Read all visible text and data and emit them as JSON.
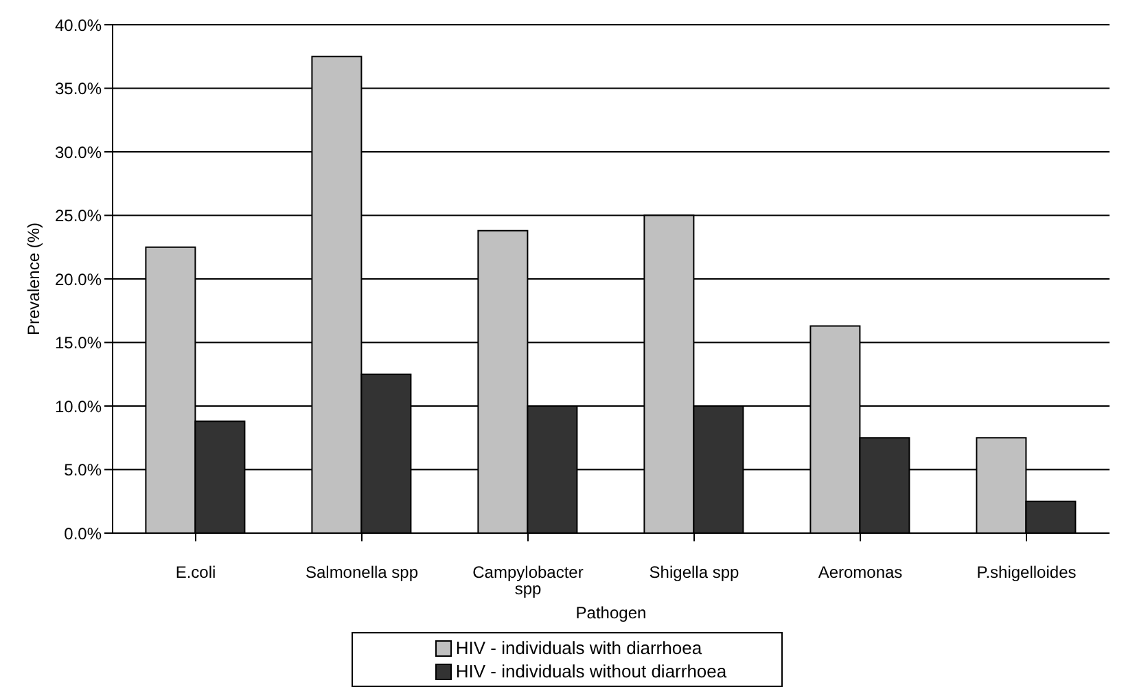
{
  "chart_data": {
    "type": "bar",
    "xlabel": "Pathogen",
    "ylabel": "Prevalence (%)",
    "categories": [
      "E.coli",
      "Salmonella spp",
      "Campylobacter spp",
      "Shigella spp",
      "Aeromonas",
      "P.shigelloides"
    ],
    "series": [
      {
        "name": "HIV - individuals with diarrhoea",
        "color": "#c0c0c0",
        "values": [
          22.5,
          37.5,
          23.8,
          25,
          16.3,
          7.5
        ]
      },
      {
        "name": "HIV - individuals without diarrhoea",
        "color": "#333333",
        "values": [
          8.8,
          12.5,
          10,
          10,
          7.5,
          2.5
        ]
      }
    ],
    "ylim": [
      0,
      40
    ],
    "yticks": [
      {
        "value": 0,
        "label": "0.0%"
      },
      {
        "value": 5,
        "label": "5.0%"
      },
      {
        "value": 10,
        "label": "10.0%"
      },
      {
        "value": 15,
        "label": "15.0%"
      },
      {
        "value": 20,
        "label": "20.0%"
      },
      {
        "value": 25,
        "label": "25.0%"
      },
      {
        "value": 30,
        "label": "30.0%"
      },
      {
        "value": 35,
        "label": "35.0%"
      },
      {
        "value": 40,
        "label": "40.0%"
      }
    ],
    "grid": "y",
    "legend": "bottom"
  }
}
